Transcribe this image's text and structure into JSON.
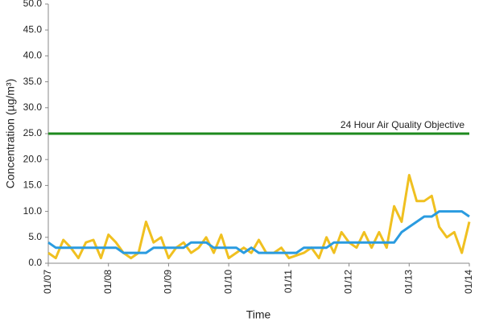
{
  "chart_data": {
    "type": "line",
    "x_label": "Time",
    "y_label": "Concentration (µg/m³)",
    "categories": [
      "01/07",
      null,
      null,
      null,
      null,
      null,
      null,
      null,
      "01/08",
      null,
      null,
      null,
      null,
      null,
      null,
      null,
      "01/09",
      null,
      null,
      null,
      null,
      null,
      null,
      null,
      "01/10",
      null,
      null,
      null,
      null,
      null,
      null,
      null,
      "01/11",
      null,
      null,
      null,
      null,
      null,
      null,
      null,
      "01/12",
      null,
      null,
      null,
      null,
      null,
      null,
      null,
      "01/13",
      null,
      null,
      null,
      null,
      null,
      null,
      null,
      "01/14"
    ],
    "series": [
      {
        "color": "#f0c020",
        "values": [
          2,
          1,
          4.5,
          3,
          1,
          4,
          4.5,
          1,
          5.5,
          4,
          2,
          1,
          2,
          8,
          4,
          5,
          1,
          3,
          4,
          2,
          3,
          5,
          2,
          5.5,
          1,
          2,
          3,
          2,
          4.5,
          2,
          2,
          3,
          1,
          1.5,
          2,
          3,
          1,
          5,
          2,
          6,
          4,
          3,
          6,
          3,
          6,
          3,
          11,
          8,
          17,
          12,
          12,
          13,
          7,
          5,
          6,
          2,
          8
        ]
      },
      {
        "color": "#2a9be0",
        "values": [
          4,
          3,
          3,
          3,
          3,
          3,
          3,
          3,
          3,
          3,
          2,
          2,
          2,
          2,
          3,
          3,
          3,
          3,
          3,
          4,
          4,
          4,
          3,
          3,
          3,
          3,
          2,
          3,
          2,
          2,
          2,
          2,
          2,
          2,
          3,
          3,
          3,
          3,
          4,
          4,
          4,
          4,
          4,
          4,
          4,
          4,
          4,
          6,
          7,
          8,
          9,
          9,
          10,
          10,
          10,
          10,
          9
        ]
      }
    ],
    "objective": {
      "value": 25,
      "label": "24 Hour Air Quality Objective",
      "color": "#1e8a1e"
    },
    "ylim": [
      0,
      50
    ],
    "yticks": [
      {
        "value": 0,
        "label": "0.0"
      },
      {
        "value": 5,
        "label": "5.0"
      },
      {
        "value": 10,
        "label": "10.0"
      },
      {
        "value": 15,
        "label": "15.0"
      },
      {
        "value": 20,
        "label": "20.0"
      },
      {
        "value": 25,
        "label": "25.0"
      },
      {
        "value": 30,
        "label": "30.0"
      },
      {
        "value": 35,
        "label": "35.0"
      },
      {
        "value": 40,
        "label": "40.0"
      },
      {
        "value": 45,
        "label": "45.0"
      },
      {
        "value": 50,
        "label": "50.0"
      }
    ],
    "grid": false
  }
}
